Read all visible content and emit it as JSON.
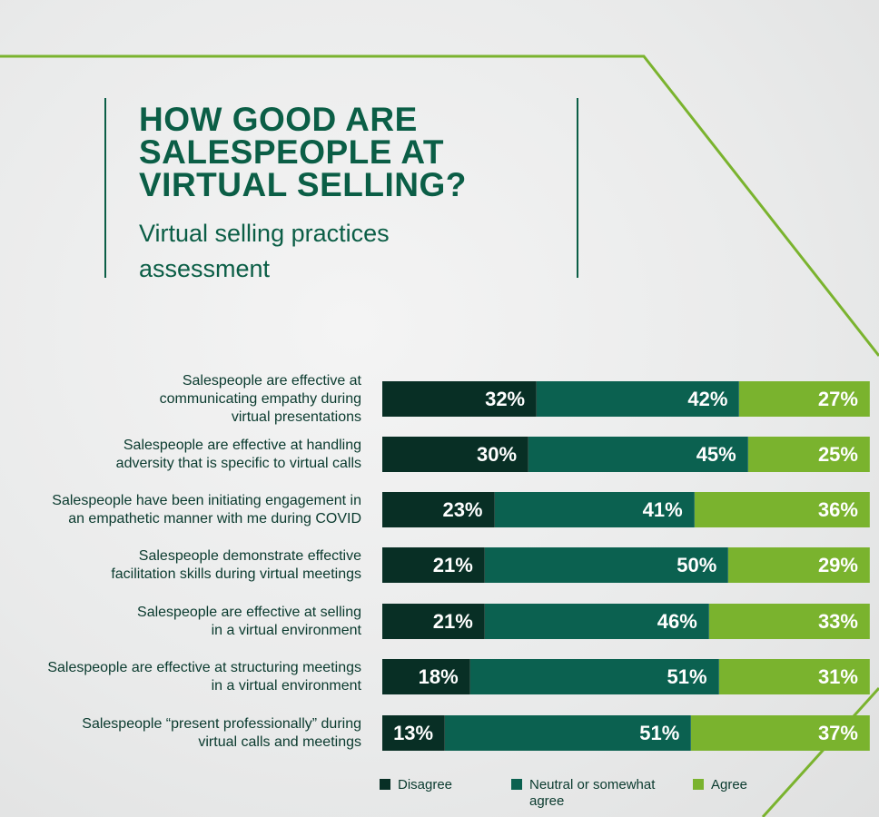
{
  "chart_data": {
    "type": "bar",
    "stacked": true,
    "orientation": "horizontal",
    "title": "HOW GOOD ARE SALESPEOPLE AT VIRTUAL SELLING?",
    "subtitle": "Virtual selling practices assessment",
    "categories": [
      "Salespeople are effective at communicating empathy during virtual presentations",
      "Salespeople are effective at handling adversity that is specific to virtual calls",
      "Salespeople have been initiating engagement in an empathetic manner with me during COVID",
      "Salespeople demonstrate effective facilitation skills during virtual meetings",
      "Salespeople are effective at selling in a virtual environment",
      "Salespeople are effective at structuring meetings in a virtual environment",
      "Salespeople “present professionally” during virtual calls and meetings"
    ],
    "series": [
      {
        "name": "Disagree",
        "color": "#082f25",
        "values": [
          32,
          30,
          23,
          21,
          21,
          18,
          13
        ]
      },
      {
        "name": "Neutral or somewhat agree",
        "color": "#0b6150",
        "values": [
          42,
          45,
          41,
          50,
          46,
          51,
          51
        ]
      },
      {
        "name": "Agree",
        "color": "#7ab32e",
        "values": [
          27,
          25,
          36,
          29,
          33,
          31,
          37
        ]
      }
    ],
    "value_suffix": "%",
    "legend_position": "bottom"
  }
}
